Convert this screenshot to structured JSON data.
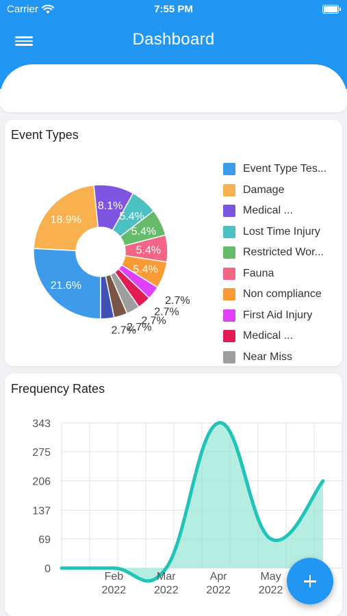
{
  "status_bar": {
    "carrier": "Carrier",
    "time": "7:55 PM"
  },
  "app_bar": {
    "title": "Dashboard",
    "menu_icon": "hamburger-menu-icon"
  },
  "event_types": {
    "title": "Event Types",
    "chart_data": {
      "type": "pie",
      "style": "donut",
      "slices": [
        {
          "label": "Event Type Tes...",
          "value": 21.6,
          "value_label": "21.6%",
          "color": "#3d9be9"
        },
        {
          "label": "Damage",
          "value": 18.9,
          "value_label": "18.9%",
          "color": "#f9b04e"
        },
        {
          "label": "Medical ...",
          "value": 8.1,
          "value_label": "8.1%",
          "color": "#7e55e0"
        },
        {
          "label": "Lost Time Injury",
          "value": 5.4,
          "value_label": "5.4%",
          "color": "#4cc0c2"
        },
        {
          "label": "Restricted Wor...",
          "value": 5.4,
          "value_label": "5.4%",
          "color": "#66bb6a"
        },
        {
          "label": "Fauna",
          "value": 5.4,
          "value_label": "5.4%",
          "color": "#f26585"
        },
        {
          "label": "Non compliance",
          "value": 5.4,
          "value_label": "5.4%",
          "color": "#fa9a35"
        },
        {
          "label": "First Aid Injury",
          "value": 2.7,
          "value_label": "2.7%",
          "color": "#e040fb"
        },
        {
          "label": "Medical ...",
          "value": 2.7,
          "value_label": "2.7%",
          "color": "#e11c55"
        },
        {
          "label": "Near Miss",
          "value": 2.7,
          "value_label": "2.7%",
          "color": "#9e9e9e"
        },
        {
          "value": 2.7,
          "value_label": "2.7%",
          "color": "#795548"
        },
        {
          "value": 2.7,
          "value_label": "2.7%",
          "color": "#3f51b5"
        }
      ]
    }
  },
  "frequency_rates": {
    "title": "Frequency Rates",
    "chart_data": {
      "type": "area",
      "y_ticks": [
        0,
        69,
        137,
        206,
        275,
        343
      ],
      "ylim": [
        0,
        343
      ],
      "x_ticks": [
        {
          "month": "Feb",
          "year": "2022",
          "x": 2
        },
        {
          "month": "Mar",
          "year": "2022",
          "x": 3
        },
        {
          "month": "Apr",
          "year": "2022",
          "x": 4
        },
        {
          "month": "May",
          "year": "2022",
          "x": 5
        },
        {
          "month": "",
          "year": "2",
          "x": 6
        }
      ],
      "series": [
        {
          "x": [
            1,
            2,
            3,
            4,
            5,
            6
          ],
          "y": [
            0,
            0,
            0,
            343,
            69,
            206
          ],
          "line_color": "#20c4b8",
          "fill_color": "#8fe3d2"
        }
      ],
      "grid": true
    }
  },
  "fab": {
    "icon": "plus-icon"
  }
}
